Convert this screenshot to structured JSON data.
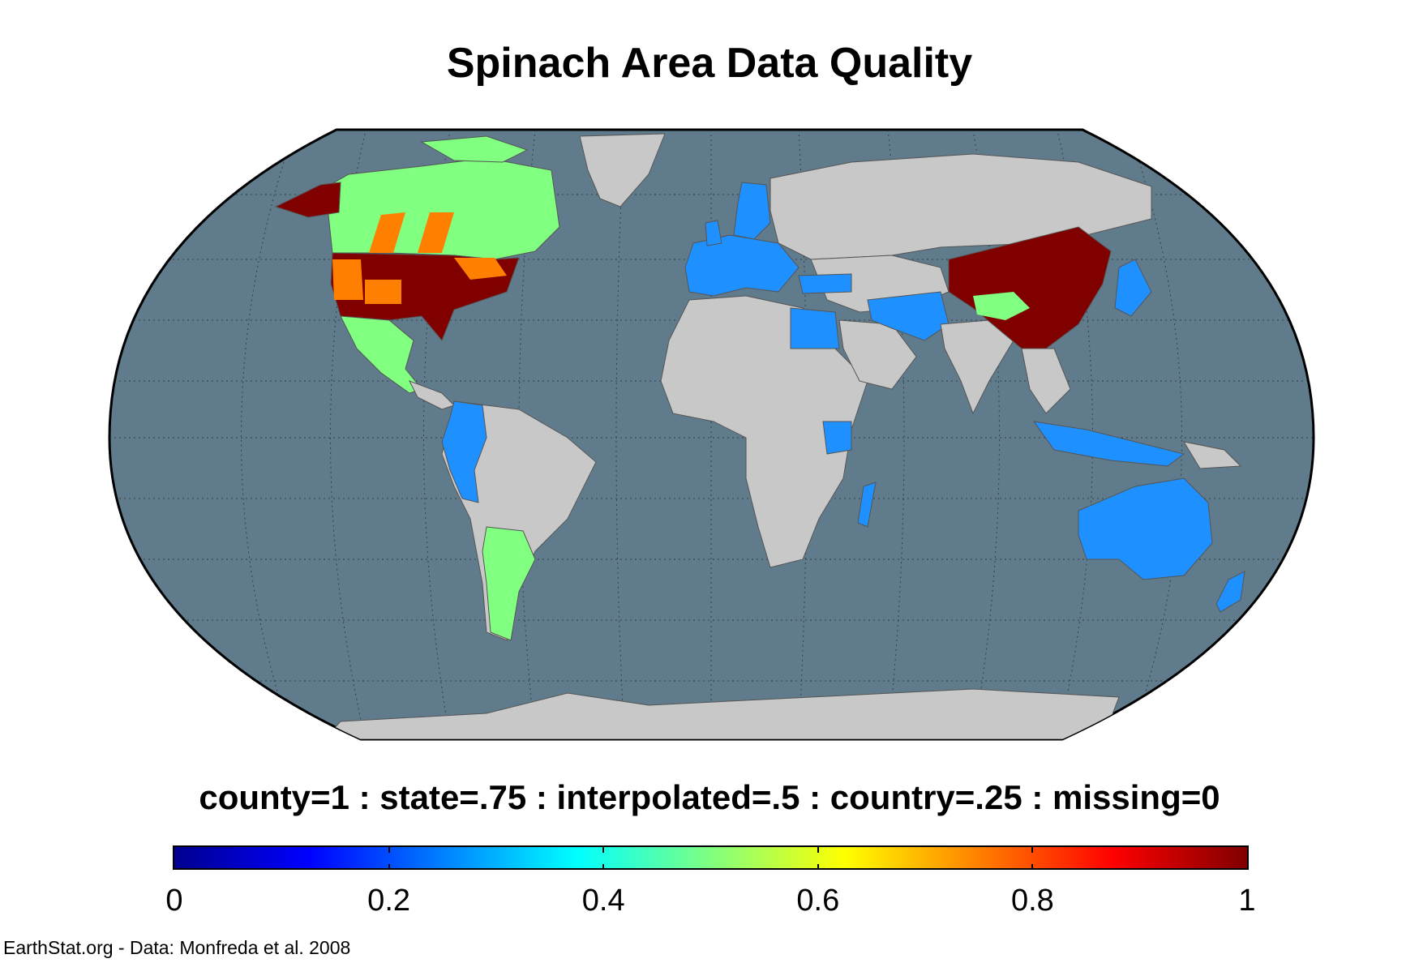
{
  "title": "Spinach Area Data Quality",
  "legend_caption": "county=1 : state=.75 : interpolated=.5 : country=.25 : missing=0",
  "colorbar": {
    "colormap": "jet",
    "ticks": [
      {
        "value": 0,
        "label": "0"
      },
      {
        "value": 0.2,
        "label": "0.2"
      },
      {
        "value": 0.4,
        "label": "0.4"
      },
      {
        "value": 0.6,
        "label": "0.6"
      },
      {
        "value": 0.8,
        "label": "0.8"
      },
      {
        "value": 1,
        "label": "1"
      }
    ],
    "stops": [
      "#00008f",
      "#0000ff",
      "#0080ff",
      "#00ffff",
      "#80ff80",
      "#ffff00",
      "#ff8000",
      "#ff0000",
      "#800000"
    ]
  },
  "credit": "EarthStat.org - Data: Monfreda et al. 2008",
  "map": {
    "projection": "Robinson",
    "ocean_color": "#607b8b",
    "no_data_color": "#c8c8c8",
    "regions": [
      {
        "name": "Alaska",
        "quality": 1,
        "color": "#800000"
      },
      {
        "name": "Canada",
        "quality": 0.5,
        "color": "#80ff80"
      },
      {
        "name": "Canadian prairie provinces",
        "quality": 0.75,
        "color": "#ff8000"
      },
      {
        "name": "United States",
        "quality": 1,
        "color": "#800000"
      },
      {
        "name": "Mexico",
        "quality": 0.5,
        "color": "#80ff80"
      },
      {
        "name": "Argentina",
        "quality": 0.5,
        "color": "#80ff80"
      },
      {
        "name": "Colombia/Ecuador/Peru",
        "quality": 0.25,
        "color": "#1e90ff"
      },
      {
        "name": "Europe",
        "quality": 0.25,
        "color": "#1e90ff"
      },
      {
        "name": "Egypt",
        "quality": 0.25,
        "color": "#1e90ff"
      },
      {
        "name": "Iran/Pakistan",
        "quality": 0.25,
        "color": "#1e90ff"
      },
      {
        "name": "Kenya",
        "quality": 0.25,
        "color": "#1e90ff"
      },
      {
        "name": "China",
        "quality": 1,
        "color": "#800000"
      },
      {
        "name": "Tibet",
        "quality": 0.5,
        "color": "#80ff80"
      },
      {
        "name": "Japan/Korea",
        "quality": 0.25,
        "color": "#1e90ff"
      },
      {
        "name": "Indonesia",
        "quality": 0.25,
        "color": "#1e90ff"
      },
      {
        "name": "Australia",
        "quality": 0.25,
        "color": "#1e90ff"
      },
      {
        "name": "New Zealand",
        "quality": 0.25,
        "color": "#1e90ff"
      }
    ]
  }
}
